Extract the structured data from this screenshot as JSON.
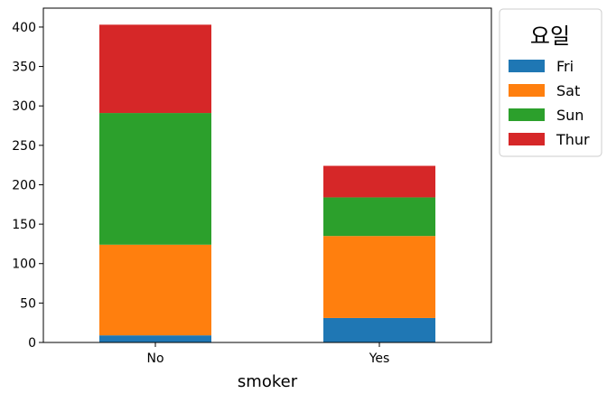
{
  "chart_data": {
    "type": "bar",
    "stacked": true,
    "categories": [
      "No",
      "Yes"
    ],
    "series": [
      {
        "name": "Fri",
        "values": [
          9,
          31
        ],
        "color": "#1f77b4"
      },
      {
        "name": "Sat",
        "values": [
          115,
          104
        ],
        "color": "#ff7f0e"
      },
      {
        "name": "Sun",
        "values": [
          167,
          49
        ],
        "color": "#2ca02c"
      },
      {
        "name": "Thur",
        "values": [
          112,
          40
        ],
        "color": "#d62728"
      }
    ],
    "title": "",
    "xlabel": "smoker",
    "ylabel": "",
    "ylim": [
      0,
      424
    ],
    "yticks": [
      0,
      50,
      100,
      150,
      200,
      250,
      300,
      350,
      400
    ],
    "grid": false,
    "legend": {
      "title": "요일",
      "placement": "outside-top-right"
    }
  }
}
